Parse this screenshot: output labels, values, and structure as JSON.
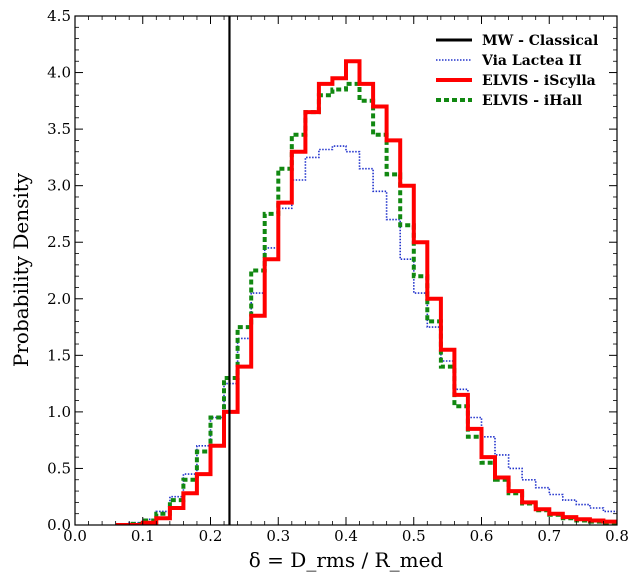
{
  "chart_data": {
    "type": "line",
    "title": "",
    "xlabel": "δ = D_rms / R_med",
    "ylabel": "Probability Density",
    "xlim": [
      0.0,
      0.8
    ],
    "ylim": [
      0.0,
      4.5
    ],
    "xticks": [
      "0.0",
      "0.1",
      "0.2",
      "0.3",
      "0.4",
      "0.5",
      "0.6",
      "0.7",
      "0.8"
    ],
    "yticks": [
      "0.0",
      "0.5",
      "1.0",
      "1.5",
      "2.0",
      "2.5",
      "3.0",
      "3.5",
      "4.0",
      "4.5"
    ],
    "grid": false,
    "legend_position": "top-right",
    "vertical_line": {
      "name": "MW - Classical",
      "x": 0.228,
      "color": "#000000"
    },
    "series": [
      {
        "name": "Via Lactea II",
        "color": "#2233cc",
        "style": "dotted",
        "x": [
          0.06,
          0.08,
          0.1,
          0.12,
          0.14,
          0.16,
          0.18,
          0.2,
          0.22,
          0.24,
          0.26,
          0.28,
          0.3,
          0.32,
          0.34,
          0.36,
          0.38,
          0.4,
          0.42,
          0.44,
          0.46,
          0.48,
          0.5,
          0.52,
          0.54,
          0.56,
          0.58,
          0.6,
          0.62,
          0.64,
          0.66,
          0.68,
          0.7,
          0.72,
          0.74,
          0.76,
          0.78,
          0.8
        ],
        "y": [
          0.0,
          0.02,
          0.05,
          0.12,
          0.25,
          0.45,
          0.7,
          0.95,
          1.25,
          1.65,
          2.05,
          2.45,
          2.8,
          3.05,
          3.25,
          3.32,
          3.35,
          3.3,
          3.15,
          2.95,
          2.7,
          2.35,
          2.05,
          1.75,
          1.45,
          1.2,
          0.95,
          0.78,
          0.62,
          0.5,
          0.4,
          0.33,
          0.27,
          0.22,
          0.18,
          0.15,
          0.12,
          0.1
        ]
      },
      {
        "name": "ELVIS - iScylla",
        "color": "#ff0000",
        "style": "solid",
        "x": [
          0.06,
          0.08,
          0.1,
          0.12,
          0.14,
          0.16,
          0.18,
          0.2,
          0.22,
          0.24,
          0.26,
          0.28,
          0.3,
          0.32,
          0.34,
          0.36,
          0.38,
          0.4,
          0.42,
          0.44,
          0.46,
          0.48,
          0.5,
          0.52,
          0.54,
          0.56,
          0.58,
          0.6,
          0.62,
          0.64,
          0.66,
          0.68,
          0.7,
          0.72,
          0.74,
          0.76,
          0.78,
          0.8
        ],
        "y": [
          0.0,
          0.0,
          0.02,
          0.06,
          0.15,
          0.28,
          0.45,
          0.7,
          1.0,
          1.4,
          1.85,
          2.35,
          2.85,
          3.3,
          3.65,
          3.9,
          3.95,
          4.1,
          3.9,
          3.7,
          3.4,
          3.0,
          2.5,
          2.0,
          1.55,
          1.15,
          0.85,
          0.6,
          0.42,
          0.3,
          0.2,
          0.14,
          0.1,
          0.07,
          0.05,
          0.04,
          0.03,
          0.02
        ]
      },
      {
        "name": "ELVIS - iHall",
        "color": "#118811",
        "style": "dashed",
        "x": [
          0.06,
          0.08,
          0.1,
          0.12,
          0.14,
          0.16,
          0.18,
          0.2,
          0.22,
          0.24,
          0.26,
          0.28,
          0.3,
          0.32,
          0.34,
          0.36,
          0.38,
          0.4,
          0.42,
          0.44,
          0.46,
          0.48,
          0.5,
          0.52,
          0.54,
          0.56,
          0.58,
          0.6,
          0.62,
          0.64,
          0.66,
          0.68,
          0.7,
          0.72,
          0.74,
          0.76,
          0.78,
          0.8
        ],
        "y": [
          0.0,
          0.01,
          0.04,
          0.1,
          0.22,
          0.4,
          0.65,
          0.95,
          1.3,
          1.75,
          2.25,
          2.75,
          3.15,
          3.45,
          3.65,
          3.8,
          3.85,
          3.9,
          3.75,
          3.45,
          3.1,
          2.65,
          2.2,
          1.8,
          1.4,
          1.05,
          0.78,
          0.55,
          0.4,
          0.28,
          0.19,
          0.13,
          0.09,
          0.06,
          0.04,
          0.03,
          0.02,
          0.01
        ]
      }
    ]
  }
}
